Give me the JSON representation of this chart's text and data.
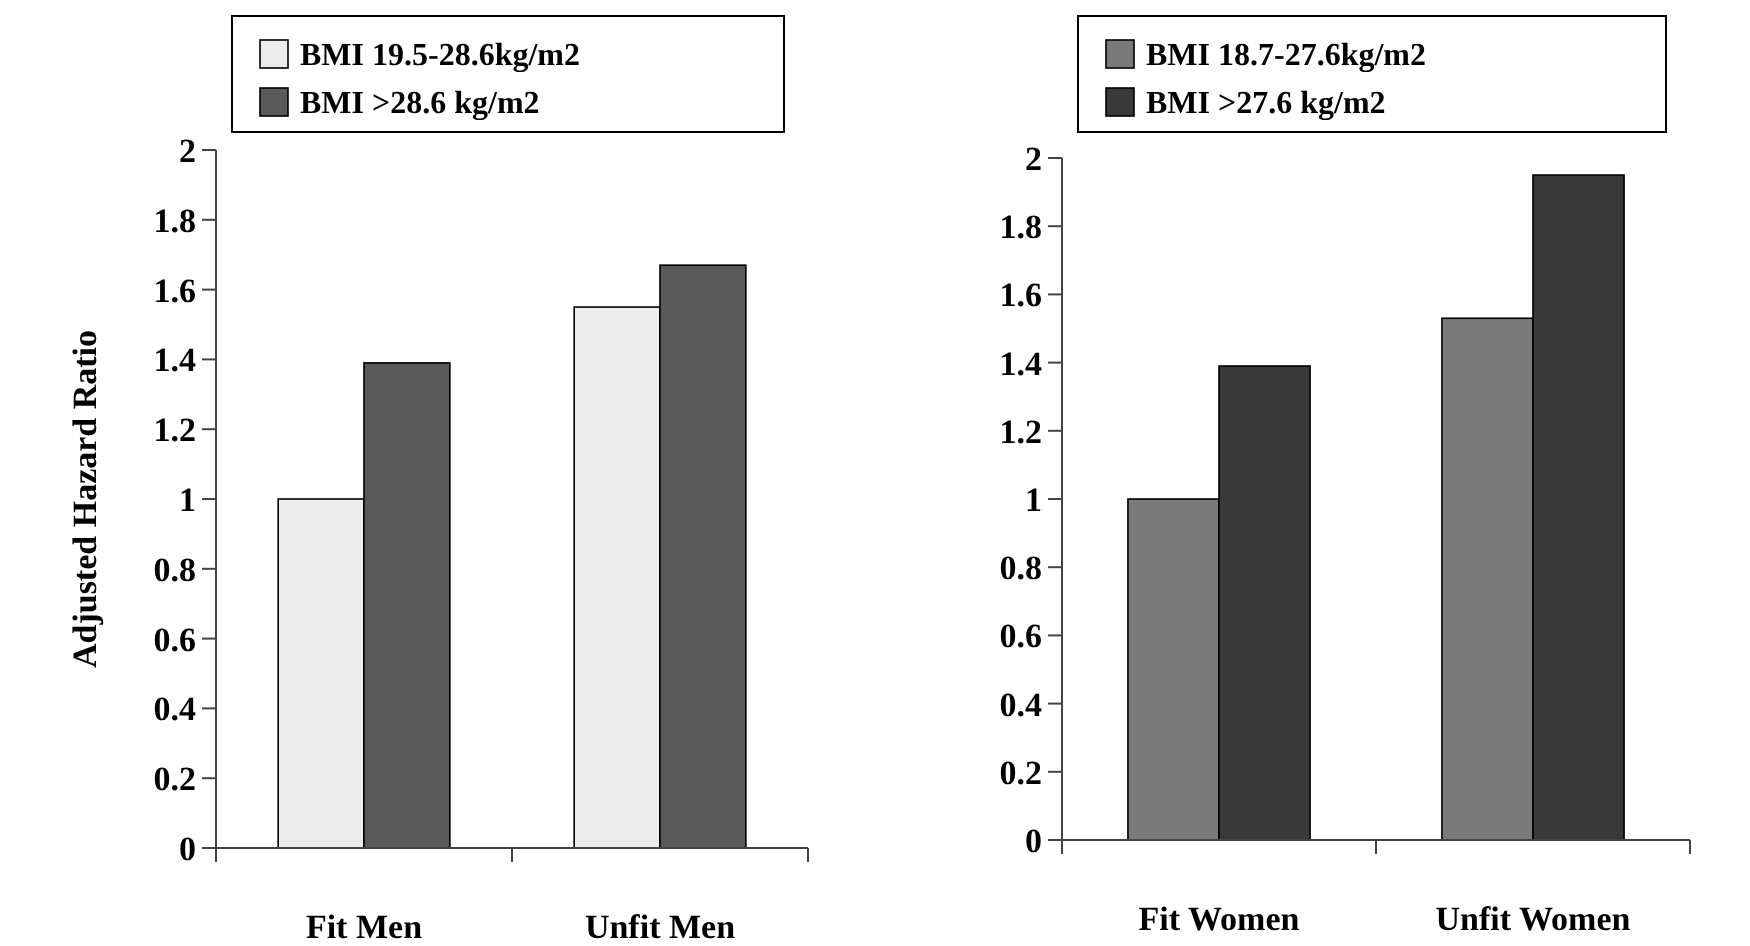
{
  "chart_data": [
    {
      "type": "bar",
      "ylabel": "Adjusted Hazard Ratio",
      "categories": [
        "Fit Men",
        "Unfit Men"
      ],
      "series": [
        {
          "name": "BMI 19.5-28.6kg/m2",
          "color": "#ececec",
          "values": [
            1.0,
            1.55
          ]
        },
        {
          "name": "BMI >28.6 kg/m2",
          "color": "#5a5a5a",
          "values": [
            1.39,
            1.67
          ]
        }
      ],
      "ylim": [
        0,
        2
      ],
      "yticks": [
        0,
        0.2,
        0.4,
        0.6,
        0.8,
        1,
        1.2,
        1.4,
        1.6,
        1.8,
        2
      ],
      "grid": false,
      "legend": "top"
    },
    {
      "type": "bar",
      "categories": [
        "Fit Women",
        "Unfit Women"
      ],
      "series": [
        {
          "name": "BMI 18.7-27.6kg/m2",
          "color": "#7a7a7a",
          "values": [
            1.0,
            1.53
          ]
        },
        {
          "name": "BMI >27.6 kg/m2",
          "color": "#393939",
          "values": [
            1.39,
            1.95
          ]
        }
      ],
      "ylim": [
        0,
        2
      ],
      "yticks": [
        0,
        0.2,
        0.4,
        0.6,
        0.8,
        1,
        1.2,
        1.4,
        1.6,
        1.8,
        2
      ],
      "grid": false,
      "legend": "top"
    }
  ]
}
